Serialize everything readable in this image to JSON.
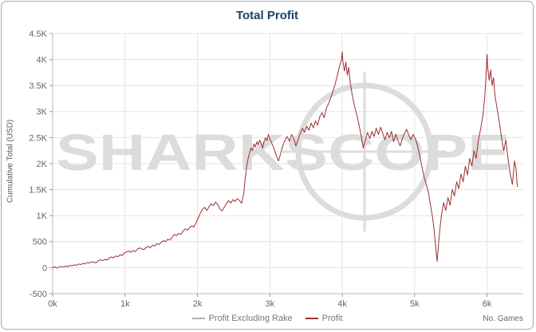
{
  "title": "Total Profit",
  "watermark": "SHARKSCOPE",
  "axes": {
    "y_label": "Cumulative Total (USD)",
    "x_label": "No. Games"
  },
  "legend": [
    {
      "label": "Profit Excluding Rake",
      "color": "#b0b0b0"
    },
    {
      "label": "Profit",
      "color": "#9c2f2f"
    }
  ],
  "colors": {
    "title": "#1f3f66",
    "grid": "#e4e4e4",
    "axis": "#b8b8b8",
    "tick": "#9a9a9a",
    "tick_label": "#666666",
    "watermark": "#dcdcdc",
    "line": "#9c2f2f"
  },
  "chart_data": {
    "type": "line",
    "title": "Total Profit",
    "xlabel": "No. Games",
    "ylabel": "Cumulative Total (USD)",
    "xlim": [
      0,
      6500
    ],
    "ylim": [
      -500,
      4500
    ],
    "grid": true,
    "legend_position": "bottom",
    "legend": [
      "Profit Excluding Rake",
      "Profit"
    ],
    "xticks": [
      {
        "v": 0,
        "label": "0k"
      },
      {
        "v": 1000,
        "label": "1k"
      },
      {
        "v": 2000,
        "label": "2k"
      },
      {
        "v": 3000,
        "label": "3k"
      },
      {
        "v": 4000,
        "label": "4k"
      },
      {
        "v": 5000,
        "label": "5k"
      },
      {
        "v": 6000,
        "label": "6k"
      }
    ],
    "yticks": [
      {
        "v": -500,
        "label": "-500"
      },
      {
        "v": 0,
        "label": "0"
      },
      {
        "v": 500,
        "label": "500"
      },
      {
        "v": 1000,
        "label": "1K"
      },
      {
        "v": 1500,
        "label": "1.5K"
      },
      {
        "v": 2000,
        "label": "2K"
      },
      {
        "v": 2500,
        "label": "2.5K"
      },
      {
        "v": 3000,
        "label": "3K"
      },
      {
        "v": 3500,
        "label": "3.5K"
      },
      {
        "v": 4000,
        "label": "4K"
      },
      {
        "v": 4500,
        "label": "4.5K"
      }
    ],
    "series": [
      {
        "name": "Profit",
        "color": "#9c2f2f",
        "points": [
          [
            0,
            0
          ],
          [
            30,
            15
          ],
          [
            60,
            -5
          ],
          [
            90,
            10
          ],
          [
            120,
            25
          ],
          [
            150,
            10
          ],
          [
            180,
            30
          ],
          [
            210,
            20
          ],
          [
            240,
            40
          ],
          [
            270,
            35
          ],
          [
            300,
            55
          ],
          [
            330,
            45
          ],
          [
            360,
            70
          ],
          [
            390,
            60
          ],
          [
            420,
            85
          ],
          [
            450,
            75
          ],
          [
            480,
            100
          ],
          [
            510,
            90
          ],
          [
            540,
            115
          ],
          [
            570,
            105
          ],
          [
            600,
            95
          ],
          [
            630,
            130
          ],
          [
            660,
            150
          ],
          [
            690,
            135
          ],
          [
            720,
            160
          ],
          [
            750,
            145
          ],
          [
            780,
            180
          ],
          [
            810,
            205
          ],
          [
            840,
            190
          ],
          [
            870,
            225
          ],
          [
            900,
            210
          ],
          [
            930,
            250
          ],
          [
            960,
            235
          ],
          [
            990,
            280
          ],
          [
            1020,
            300
          ],
          [
            1050,
            320
          ],
          [
            1080,
            295
          ],
          [
            1110,
            330
          ],
          [
            1140,
            310
          ],
          [
            1170,
            355
          ],
          [
            1200,
            380
          ],
          [
            1230,
            360
          ],
          [
            1260,
            345
          ],
          [
            1290,
            390
          ],
          [
            1320,
            410
          ],
          [
            1350,
            385
          ],
          [
            1380,
            430
          ],
          [
            1410,
            415
          ],
          [
            1440,
            460
          ],
          [
            1470,
            445
          ],
          [
            1500,
            490
          ],
          [
            1530,
            520
          ],
          [
            1560,
            500
          ],
          [
            1590,
            545
          ],
          [
            1620,
            530
          ],
          [
            1650,
            585
          ],
          [
            1680,
            640
          ],
          [
            1710,
            615
          ],
          [
            1740,
            660
          ],
          [
            1770,
            640
          ],
          [
            1800,
            700
          ],
          [
            1830,
            745
          ],
          [
            1860,
            720
          ],
          [
            1890,
            770
          ],
          [
            1920,
            800
          ],
          [
            1950,
            780
          ],
          [
            1980,
            860
          ],
          [
            2010,
            950
          ],
          [
            2040,
            1050
          ],
          [
            2070,
            1120
          ],
          [
            2100,
            1160
          ],
          [
            2130,
            1100
          ],
          [
            2160,
            1170
          ],
          [
            2190,
            1230
          ],
          [
            2220,
            1190
          ],
          [
            2250,
            1260
          ],
          [
            2280,
            1210
          ],
          [
            2310,
            1130
          ],
          [
            2340,
            1090
          ],
          [
            2370,
            1160
          ],
          [
            2400,
            1230
          ],
          [
            2430,
            1290
          ],
          [
            2460,
            1240
          ],
          [
            2490,
            1310
          ],
          [
            2520,
            1270
          ],
          [
            2550,
            1330
          ],
          [
            2580,
            1290
          ],
          [
            2610,
            1240
          ],
          [
            2640,
            1420
          ],
          [
            2660,
            1700
          ],
          [
            2680,
            1950
          ],
          [
            2700,
            2100
          ],
          [
            2720,
            2200
          ],
          [
            2740,
            2300
          ],
          [
            2760,
            2250
          ],
          [
            2780,
            2380
          ],
          [
            2800,
            2320
          ],
          [
            2820,
            2420
          ],
          [
            2840,
            2360
          ],
          [
            2860,
            2450
          ],
          [
            2880,
            2380
          ],
          [
            2900,
            2300
          ],
          [
            2920,
            2420
          ],
          [
            2940,
            2500
          ],
          [
            2960,
            2440
          ],
          [
            2980,
            2560
          ],
          [
            3000,
            2480
          ],
          [
            3030,
            2380
          ],
          [
            3060,
            2280
          ],
          [
            3090,
            2150
          ],
          [
            3120,
            2050
          ],
          [
            3150,
            2200
          ],
          [
            3180,
            2350
          ],
          [
            3210,
            2450
          ],
          [
            3240,
            2520
          ],
          [
            3270,
            2430
          ],
          [
            3300,
            2560
          ],
          [
            3330,
            2480
          ],
          [
            3360,
            2340
          ],
          [
            3390,
            2460
          ],
          [
            3420,
            2580
          ],
          [
            3450,
            2680
          ],
          [
            3480,
            2600
          ],
          [
            3510,
            2720
          ],
          [
            3540,
            2640
          ],
          [
            3570,
            2780
          ],
          [
            3600,
            2690
          ],
          [
            3630,
            2820
          ],
          [
            3660,
            2740
          ],
          [
            3690,
            2900
          ],
          [
            3720,
            2980
          ],
          [
            3750,
            2880
          ],
          [
            3780,
            3060
          ],
          [
            3810,
            3150
          ],
          [
            3840,
            3260
          ],
          [
            3870,
            3380
          ],
          [
            3900,
            3520
          ],
          [
            3930,
            3680
          ],
          [
            3960,
            3850
          ],
          [
            3990,
            4000
          ],
          [
            4000,
            4150
          ],
          [
            4010,
            3950
          ],
          [
            4030,
            3780
          ],
          [
            4050,
            3950
          ],
          [
            4070,
            3700
          ],
          [
            4090,
            3850
          ],
          [
            4110,
            3550
          ],
          [
            4140,
            3300
          ],
          [
            4170,
            3100
          ],
          [
            4200,
            2950
          ],
          [
            4230,
            2750
          ],
          [
            4260,
            2550
          ],
          [
            4290,
            2300
          ],
          [
            4320,
            2450
          ],
          [
            4350,
            2600
          ],
          [
            4380,
            2480
          ],
          [
            4410,
            2620
          ],
          [
            4440,
            2520
          ],
          [
            4470,
            2680
          ],
          [
            4500,
            2560
          ],
          [
            4530,
            2700
          ],
          [
            4560,
            2580
          ],
          [
            4590,
            2460
          ],
          [
            4620,
            2600
          ],
          [
            4650,
            2500
          ],
          [
            4680,
            2620
          ],
          [
            4710,
            2420
          ],
          [
            4740,
            2560
          ],
          [
            4770,
            2440
          ],
          [
            4800,
            2340
          ],
          [
            4830,
            2480
          ],
          [
            4860,
            2580
          ],
          [
            4890,
            2660
          ],
          [
            4920,
            2540
          ],
          [
            4950,
            2460
          ],
          [
            4980,
            2560
          ],
          [
            5010,
            2480
          ],
          [
            5040,
            2340
          ],
          [
            5070,
            2150
          ],
          [
            5100,
            1950
          ],
          [
            5130,
            1750
          ],
          [
            5160,
            1600
          ],
          [
            5190,
            1450
          ],
          [
            5220,
            1200
          ],
          [
            5250,
            950
          ],
          [
            5270,
            700
          ],
          [
            5290,
            400
          ],
          [
            5310,
            120
          ],
          [
            5330,
            450
          ],
          [
            5350,
            750
          ],
          [
            5370,
            1000
          ],
          [
            5400,
            1250
          ],
          [
            5430,
            1100
          ],
          [
            5460,
            1350
          ],
          [
            5490,
            1200
          ],
          [
            5520,
            1500
          ],
          [
            5550,
            1380
          ],
          [
            5580,
            1650
          ],
          [
            5610,
            1520
          ],
          [
            5640,
            1800
          ],
          [
            5670,
            1650
          ],
          [
            5700,
            1950
          ],
          [
            5730,
            1780
          ],
          [
            5760,
            2100
          ],
          [
            5790,
            1950
          ],
          [
            5820,
            2250
          ],
          [
            5850,
            2100
          ],
          [
            5880,
            2450
          ],
          [
            5910,
            2650
          ],
          [
            5940,
            2900
          ],
          [
            5970,
            3300
          ],
          [
            5990,
            3800
          ],
          [
            6000,
            4100
          ],
          [
            6010,
            3850
          ],
          [
            6030,
            3600
          ],
          [
            6050,
            3800
          ],
          [
            6070,
            3500
          ],
          [
            6090,
            3650
          ],
          [
            6110,
            3300
          ],
          [
            6140,
            3050
          ],
          [
            6170,
            2800
          ],
          [
            6200,
            2500
          ],
          [
            6230,
            2250
          ],
          [
            6260,
            2450
          ],
          [
            6290,
            2100
          ],
          [
            6320,
            1800
          ],
          [
            6350,
            1600
          ],
          [
            6380,
            2050
          ],
          [
            6400,
            1900
          ],
          [
            6420,
            1550
          ]
        ]
      }
    ]
  }
}
